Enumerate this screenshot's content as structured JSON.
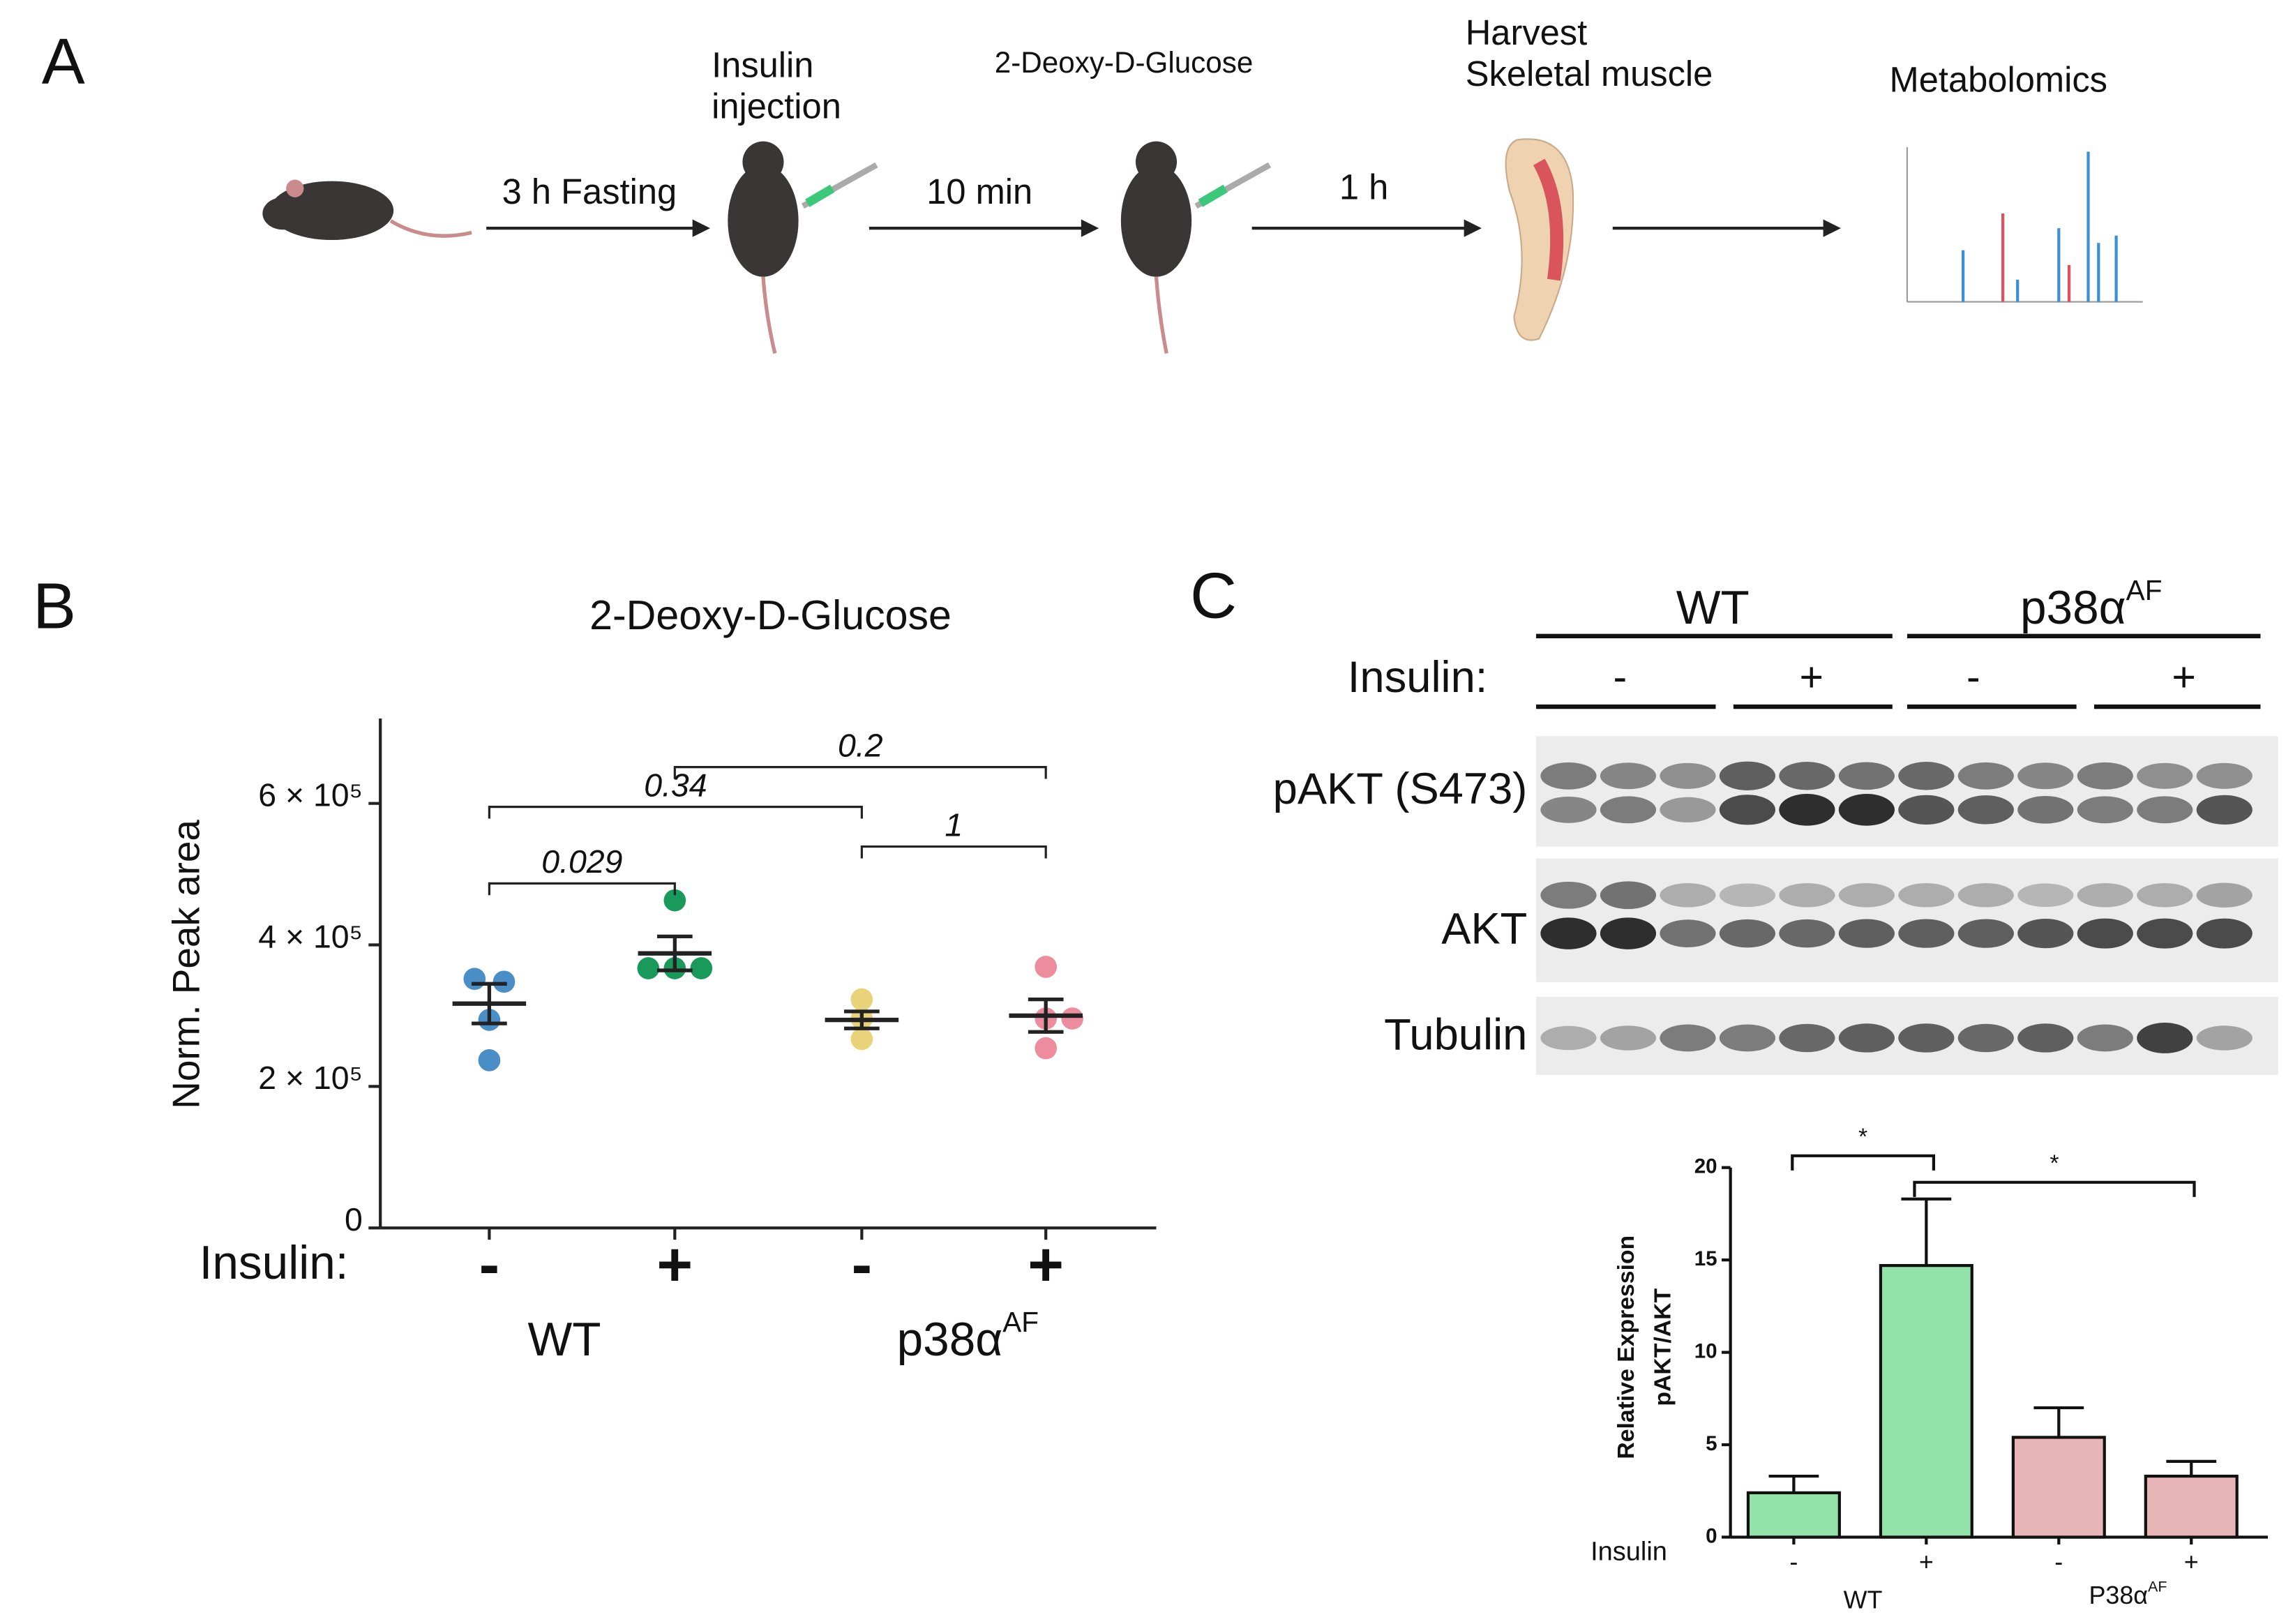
{
  "panel_a": {
    "label": "A",
    "arrows": [
      "3 h Fasting",
      "10 min",
      "1 h"
    ],
    "stages": [
      [
        "Insulin",
        "injection"
      ],
      [
        "2-Deoxy-D-Glucose"
      ],
      [
        "Harvest",
        "Skeletal muscle"
      ],
      [
        "Metabolomics"
      ]
    ]
  },
  "blot": {
    "label": "C",
    "groups": [
      {
        "text": "WT"
      },
      {
        "text": "p38α",
        "sup": "AF"
      }
    ],
    "treatment_label": "Insulin:",
    "treatments": [
      "-",
      "+",
      "-",
      "+"
    ],
    "rows": [
      "pAKT (S473)",
      "AKT",
      "Tubulin"
    ]
  },
  "chart_data": [
    {
      "type": "scatter",
      "panel": "B",
      "title": "2-Deoxy-D-Glucose",
      "ylabel": "Norm. Peak area",
      "xlabel": "Insulin:",
      "categories": [
        "-",
        "+",
        "-",
        "+"
      ],
      "groups": [
        {
          "text": "WT"
        },
        {
          "text": "p38α",
          "sup": "AF"
        }
      ],
      "series": [
        {
          "color": "#4a8ec8",
          "values": [
            352000,
            348000,
            294000,
            237000
          ],
          "mean": 317000,
          "sem": 28000
        },
        {
          "color": "#1a9a5a",
          "values": [
            463000,
            367000,
            367000,
            367000
          ],
          "mean": 388000,
          "sem": 24000
        },
        {
          "color": "#e8d27a",
          "values": [
            323000,
            296000,
            267000
          ],
          "mean": 294000,
          "sem": 12000
        },
        {
          "color": "#ec8c9c",
          "values": [
            369000,
            296000,
            296000,
            254000
          ],
          "mean": 300000,
          "sem": 23000
        }
      ],
      "p_values": [
        0.029,
        0.34,
        0.2,
        1
      ],
      "ylim": [
        0,
        720000
      ],
      "yticks": [
        0,
        {
          "value": 200000,
          "label": "2 × 10⁵"
        },
        {
          "value": 400000,
          "label": "4 × 10⁵"
        },
        {
          "value": 600000,
          "label": "6 × 10⁵"
        }
      ]
    },
    {
      "type": "bar",
      "ylabel": [
        "Relative Expression",
        "pAKT/AKT"
      ],
      "xlabel": "Insulin",
      "categories": [
        "-",
        "+",
        "-",
        "+"
      ],
      "groups": [
        {
          "text": "WT"
        },
        {
          "text": "P38α",
          "sup": "AF"
        }
      ],
      "values": [
        2.4,
        14.7,
        5.4,
        3.3
      ],
      "errors": [
        0.9,
        3.6,
        1.6,
        0.8
      ],
      "colors": [
        "#92e2aa",
        "#92e2aa",
        "#e8b6b6",
        "#e8b6b6"
      ],
      "significance": [
        "*",
        "*"
      ],
      "ylim": [
        0,
        20
      ],
      "yticks": [
        0,
        5,
        10,
        15,
        20
      ]
    }
  ]
}
